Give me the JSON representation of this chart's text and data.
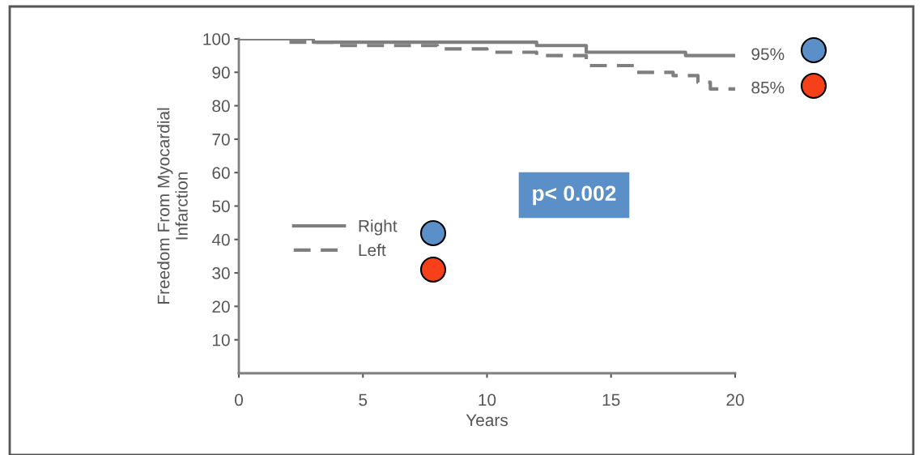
{
  "chart_data": {
    "type": "step",
    "xlabel": "Years",
    "ylabel": "Freedom From Myocardial\nInfarction",
    "xlim": [
      0,
      20
    ],
    "ylim": [
      0,
      100
    ],
    "xticks": [
      0,
      5,
      10,
      15,
      20
    ],
    "yticks": [
      10,
      20,
      30,
      40,
      50,
      60,
      70,
      80,
      90,
      100
    ],
    "grid": false,
    "legend": "center left",
    "marker": "none",
    "series": [
      {
        "name": "Right",
        "color": "#7f7f7f",
        "line_style": "solid",
        "x": [
          0,
          3,
          9,
          12,
          14,
          18,
          20
        ],
        "values": [
          100,
          99,
          99,
          98,
          96,
          95,
          95
        ]
      },
      {
        "name": "Left",
        "color": "#7f7f7f",
        "line_style": "dashed",
        "x": [
          0,
          2,
          4,
          6,
          8,
          10,
          12,
          14,
          16,
          17.5,
          18.5,
          19,
          20
        ],
        "values": [
          100,
          99,
          98,
          98,
          97,
          96,
          95,
          92,
          90,
          89,
          87,
          85,
          85
        ]
      }
    ],
    "annotations": [
      {
        "text": "95%",
        "x": 20,
        "y": 95
      },
      {
        "text": "85%",
        "x": 20,
        "y": 85
      },
      "p< 0.002"
    ]
  }
}
